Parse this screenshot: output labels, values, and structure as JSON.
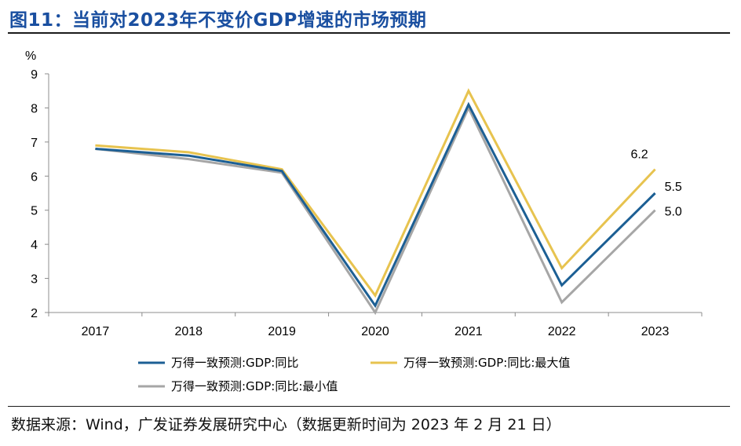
{
  "figure": {
    "title": "图11：当前对2023年不变价GDP增速的市场预期",
    "source": "数据来源：Wind，广发证券发展研究中心（数据更新时间为 2023 年 2 月 21 日）"
  },
  "chart_data": {
    "type": "line",
    "title": "图11：当前对2023年不变价GDP增速的市场预期",
    "xlabel": "",
    "ylabel": "%",
    "categories": [
      "2017",
      "2018",
      "2019",
      "2020",
      "2021",
      "2022",
      "2023"
    ],
    "ylim": [
      2,
      9
    ],
    "yticks": [
      2,
      3,
      4,
      5,
      6,
      7,
      8,
      9
    ],
    "grid": false,
    "legend_position": "bottom",
    "series": [
      {
        "name": "万得一致预测:GDP:同比:最小值",
        "color": "#a6a6a6",
        "values": [
          6.8,
          6.5,
          6.1,
          2.0,
          8.0,
          2.3,
          5.0
        ],
        "end_label": "5.0"
      },
      {
        "name": "万得一致预测:GDP:同比:最大值",
        "color": "#e7c34f",
        "values": [
          6.9,
          6.7,
          6.2,
          2.5,
          8.5,
          3.3,
          6.2
        ],
        "end_label": "6.2"
      },
      {
        "name": "万得一致预测:GDP:同比",
        "color": "#1c5f94",
        "values": [
          6.8,
          6.6,
          6.15,
          2.2,
          8.1,
          2.8,
          5.5
        ],
        "end_label": "5.5"
      }
    ]
  }
}
